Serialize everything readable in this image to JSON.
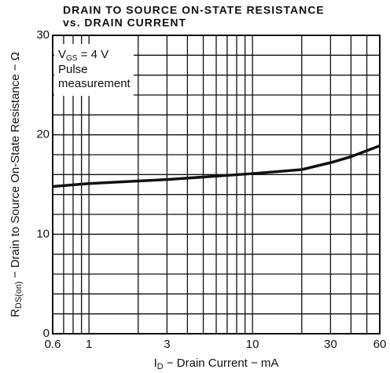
{
  "chart_data": {
    "type": "line",
    "title": [
      "DRAIN TO SOURCE ON-STATE RESISTANCE",
      "vs. DRAIN CURRENT"
    ],
    "y_label": {
      "prefix": "R",
      "sub": "DS(on)",
      "rest": " − Drain to Source On-State Resistance − Ω"
    },
    "x_label": {
      "prefix": "I",
      "sub": "D",
      "rest": " − Drain Current − mA"
    },
    "annotation": {
      "prefix": "V",
      "sub": "GS",
      "rest": " = 4 V",
      "lines": [
        "Pulse",
        "measurement"
      ]
    },
    "xscale": "log",
    "xlim": [
      0.6,
      60
    ],
    "ylim": [
      0,
      30
    ],
    "xticks": [
      0.6,
      1,
      3,
      10,
      30,
      60
    ],
    "yticks": [
      0,
      10,
      20,
      30
    ],
    "xgrid": [
      0.6,
      0.7,
      0.8,
      0.9,
      1,
      2,
      3,
      4,
      5,
      6,
      7,
      8,
      9,
      10,
      20,
      30,
      40,
      50,
      60
    ],
    "ygrid": [
      0,
      2,
      4,
      6,
      8,
      10,
      12,
      14,
      16,
      18,
      20,
      22,
      24,
      26,
      28,
      30
    ],
    "grid": true,
    "color": "#111111",
    "series": [
      {
        "name": "RDS(on)",
        "color": "#111111",
        "x": [
          0.6,
          1,
          3,
          10,
          20,
          30,
          40,
          60
        ],
        "values": [
          14.8,
          15.1,
          15.5,
          16.1,
          16.5,
          17.2,
          17.8,
          18.9
        ]
      }
    ]
  }
}
